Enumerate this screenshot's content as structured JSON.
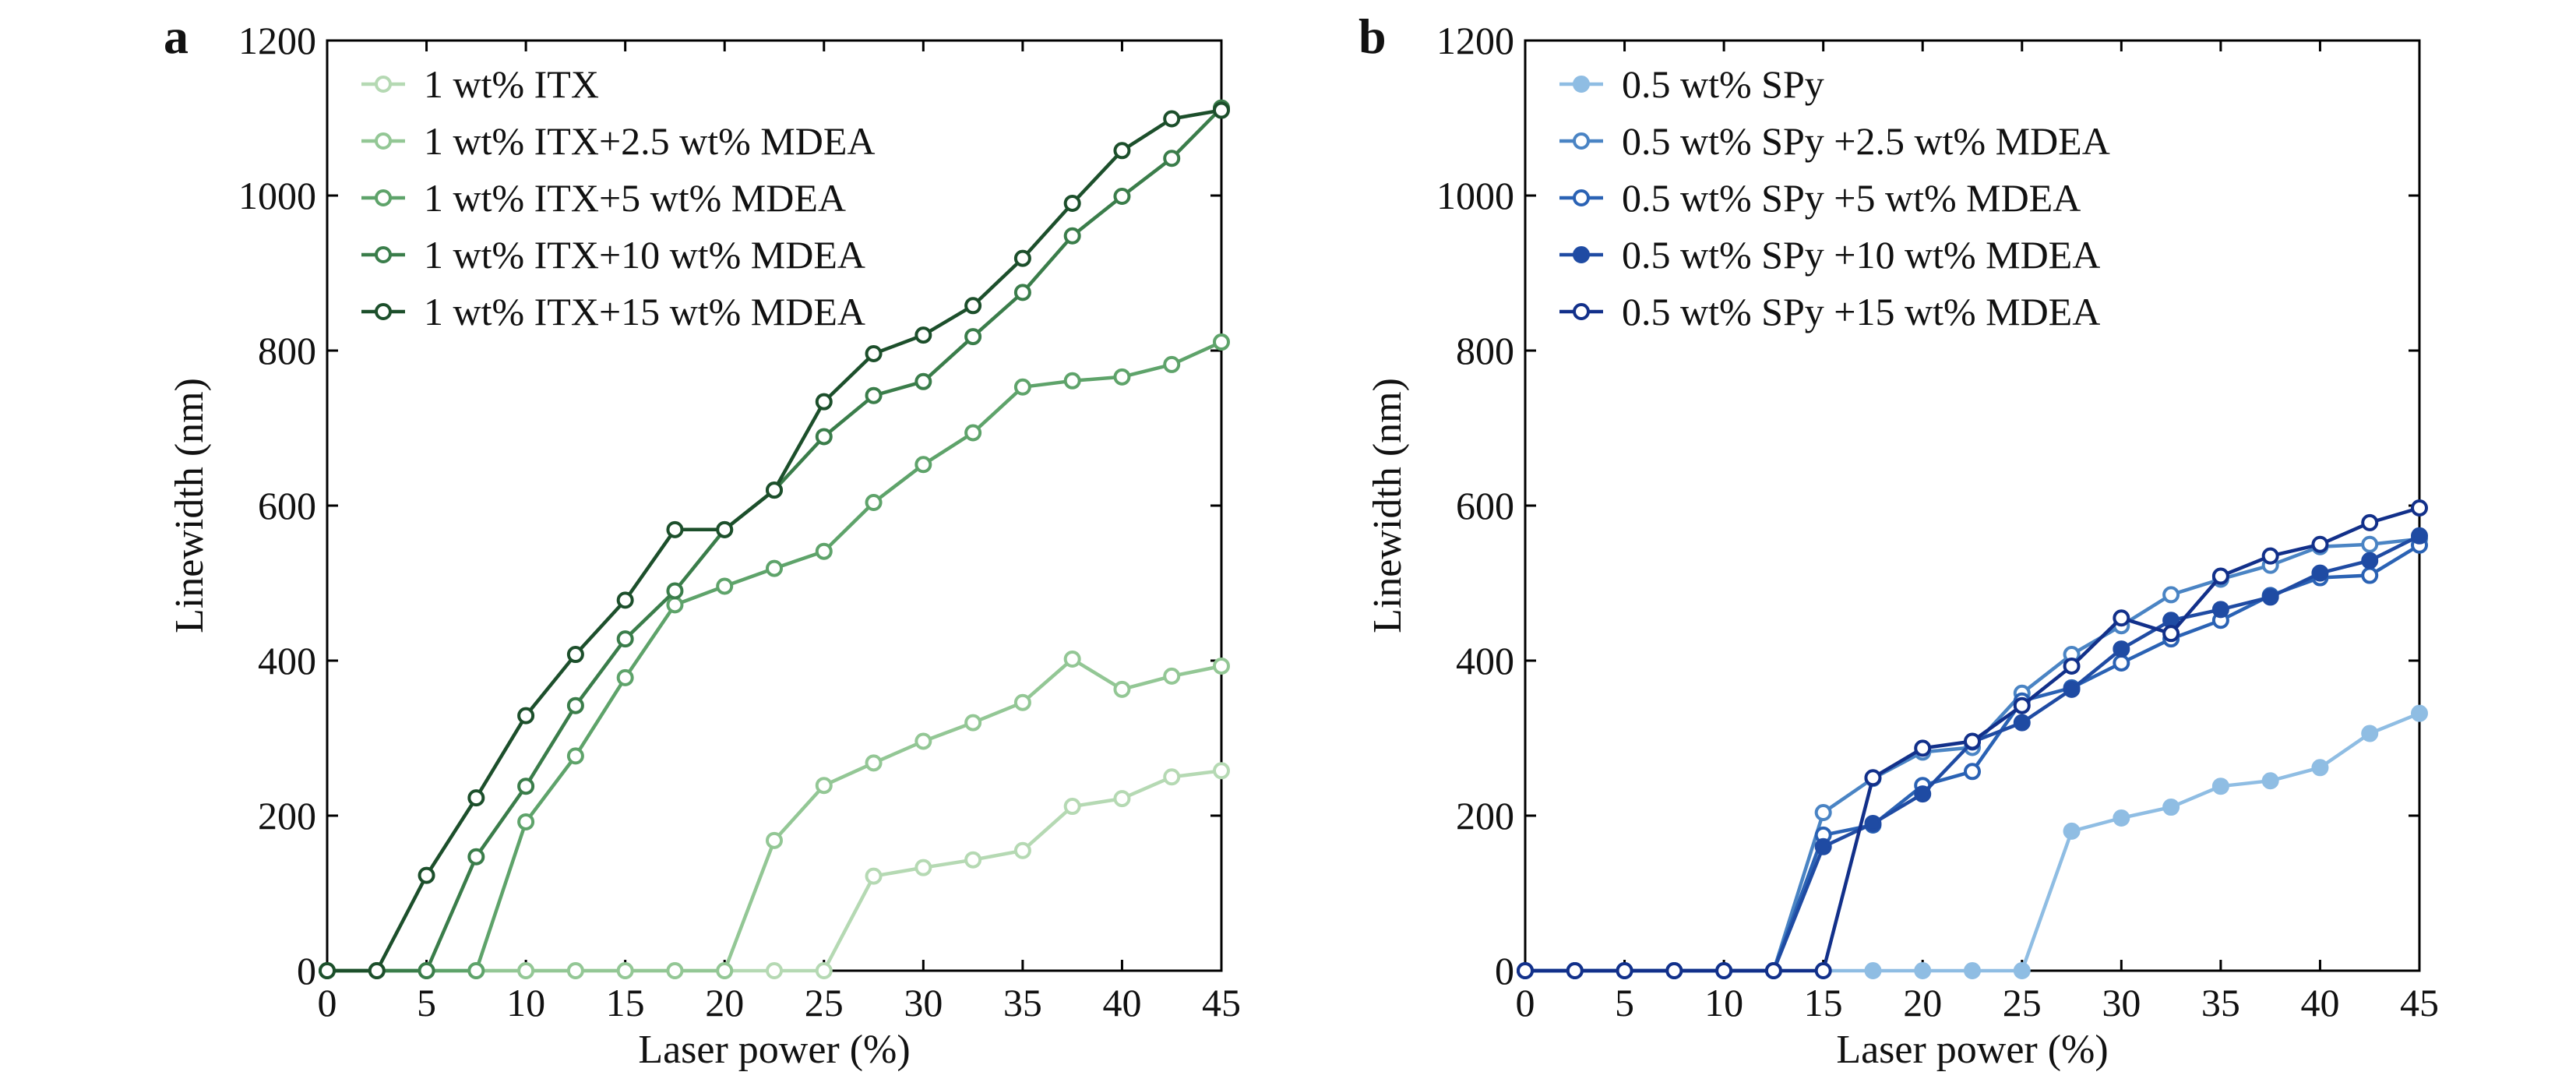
{
  "chart_data": [
    {
      "panel": "a",
      "type": "line",
      "xlabel": "Laser power (%)",
      "ylabel": "Linewidth (nm)",
      "xlim": [
        0,
        45
      ],
      "ylim": [
        0,
        1200
      ],
      "xticks": [
        0,
        5,
        10,
        15,
        20,
        25,
        30,
        35,
        40,
        45
      ],
      "yticks": [
        0,
        200,
        400,
        600,
        800,
        1000,
        1200
      ],
      "legend_position": "top-left",
      "grid": false,
      "marker": "open-circle",
      "x": [
        0,
        2.5,
        5,
        7.5,
        10,
        12.5,
        15,
        17.5,
        20,
        22.5,
        25,
        27.5,
        30,
        32.5,
        35,
        37.5,
        40,
        42.5,
        45
      ],
      "series": [
        {
          "name": "1 wt% ITX",
          "color": "#b5d9b3",
          "values": [
            0,
            0,
            0,
            0,
            0,
            0,
            0,
            0,
            0,
            0,
            0,
            122,
            133,
            143,
            155,
            212,
            222,
            250,
            258
          ]
        },
        {
          "name": "1 wt% ITX+2.5 wt% MDEA",
          "color": "#93c795",
          "values": [
            0,
            0,
            0,
            0,
            0,
            0,
            0,
            0,
            0,
            168,
            239,
            268,
            296,
            320,
            346,
            402,
            363,
            380,
            393
          ]
        },
        {
          "name": "1 wt% ITX+5 wt% MDEA",
          "color": "#5ea36a",
          "values": [
            0,
            0,
            0,
            0,
            192,
            277,
            378,
            472,
            496,
            519,
            541,
            604,
            653,
            694,
            753,
            761,
            766,
            782,
            811
          ]
        },
        {
          "name": "1 wt% ITX+10 wt% MDEA",
          "color": "#3a7d4a",
          "values": [
            0,
            0,
            0,
            147,
            238,
            342,
            428,
            490,
            569,
            620,
            689,
            742,
            760,
            818,
            875,
            948,
            999,
            1048,
            1113
          ]
        },
        {
          "name": "1 wt% ITX+15 wt% MDEA",
          "color": "#1c4f2b",
          "values": [
            0,
            0,
            123,
            223,
            329,
            408,
            478,
            569,
            569,
            620,
            734,
            796,
            820,
            858,
            919,
            990,
            1058,
            1099,
            1110
          ]
        }
      ]
    },
    {
      "panel": "b",
      "type": "line",
      "xlabel": "Laser power (%)",
      "ylabel": "Linewidth (nm)",
      "xlim": [
        0,
        45
      ],
      "ylim": [
        0,
        1200
      ],
      "xticks": [
        0,
        5,
        10,
        15,
        20,
        25,
        30,
        35,
        40,
        45
      ],
      "yticks": [
        0,
        200,
        400,
        600,
        800,
        1000,
        1200
      ],
      "legend_position": "top-left",
      "grid": false,
      "marker": "filled-circle",
      "x": [
        0,
        2.5,
        5,
        7.5,
        10,
        12.5,
        15,
        17.5,
        20,
        22.5,
        25,
        27.5,
        30,
        32.5,
        35,
        37.5,
        40,
        42.5,
        45
      ],
      "series": [
        {
          "name": "0.5 wt% SPy",
          "color": "#8fbde3",
          "marker": "filled-circle",
          "values": [
            0,
            0,
            0,
            0,
            0,
            0,
            0,
            0,
            0,
            0,
            0,
            180,
            197,
            211,
            238,
            245,
            262,
            306,
            332
          ]
        },
        {
          "name": "0.5 wt% SPy +2.5 wt% MDEA",
          "color": "#4a84c4",
          "marker": "open-circle",
          "values": [
            0,
            0,
            0,
            0,
            0,
            0,
            204,
            248,
            282,
            288,
            358,
            408,
            445,
            485,
            505,
            523,
            547,
            550,
            557
          ]
        },
        {
          "name": "0.5 wt% SPy +5 wt% MDEA",
          "color": "#2a62b4",
          "marker": "open-circle",
          "values": [
            0,
            0,
            0,
            0,
            0,
            0,
            175,
            188,
            239,
            257,
            348,
            365,
            397,
            428,
            452,
            484,
            507,
            510,
            549
          ]
        },
        {
          "name": "0.5 wt% SPy +10 wt% MDEA",
          "color": "#1f4ba3",
          "marker": "filled-circle",
          "values": [
            0,
            0,
            0,
            0,
            0,
            0,
            160,
            190,
            228,
            295,
            320,
            363,
            415,
            452,
            466,
            482,
            513,
            529,
            561
          ]
        },
        {
          "name": "0.5 wt% SPy +15 wt% MDEA",
          "color": "#12308a",
          "marker": "open-circle",
          "values": [
            0,
            0,
            0,
            0,
            0,
            0,
            0,
            249,
            287,
            296,
            342,
            393,
            455,
            435,
            509,
            535,
            550,
            578,
            597
          ]
        }
      ]
    }
  ]
}
